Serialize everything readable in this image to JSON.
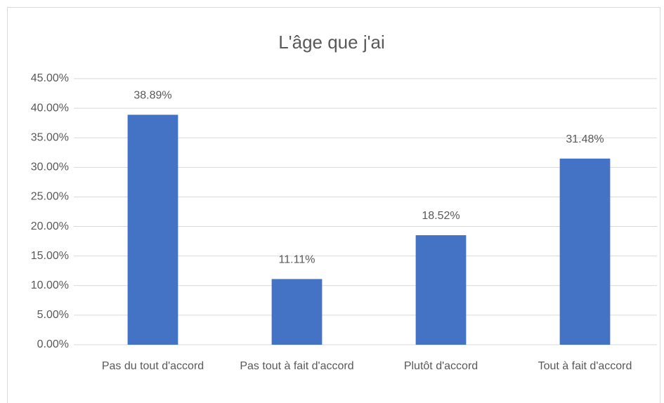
{
  "chart_data": {
    "type": "bar",
    "title": "L'âge que j'ai",
    "categories": [
      "Pas du tout d'accord",
      "Pas tout à fait d'accord",
      "Plutôt d'accord",
      "Tout à fait d'accord"
    ],
    "values": [
      38.89,
      11.11,
      18.52,
      31.48
    ],
    "value_labels": [
      "38.89%",
      "11.11%",
      "18.52%",
      "31.48%"
    ],
    "color": "#4472c4",
    "ylim": [
      0,
      45
    ],
    "yticks": [
      {
        "value": 0,
        "label": "0.00%"
      },
      {
        "value": 5,
        "label": "5.00%"
      },
      {
        "value": 10,
        "label": "10.00%"
      },
      {
        "value": 15,
        "label": "15.00%"
      },
      {
        "value": 20,
        "label": "20.00%"
      },
      {
        "value": 25,
        "label": "25.00%"
      },
      {
        "value": 30,
        "label": "30.00%"
      },
      {
        "value": 35,
        "label": "35.00%"
      },
      {
        "value": 40,
        "label": "40.00%"
      },
      {
        "value": 45,
        "label": "45.00%"
      }
    ],
    "grid": true
  }
}
